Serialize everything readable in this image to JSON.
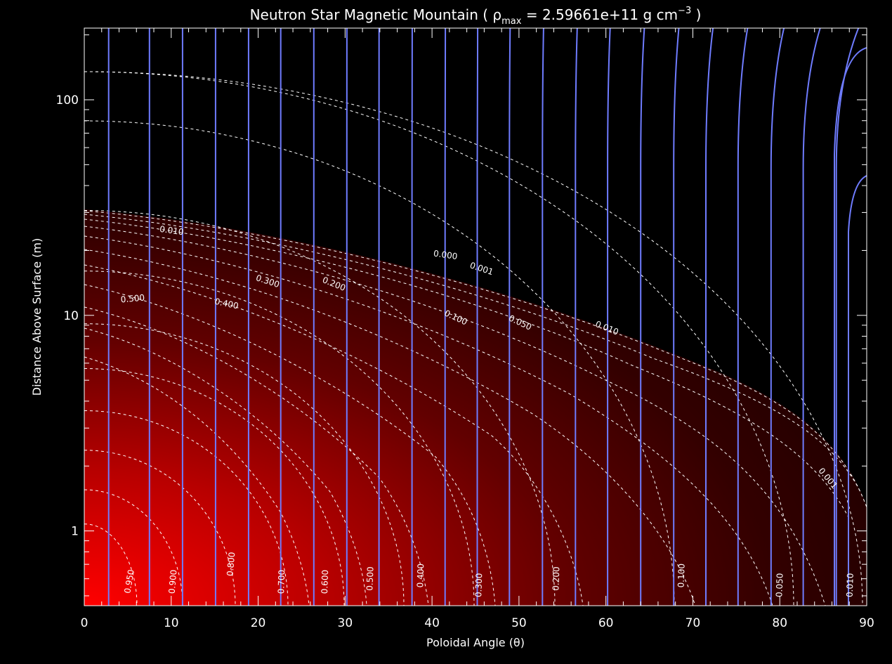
{
  "chart_data": {
    "type": "heatmap",
    "title": "Neutron Star Magnetic Mountain ( ρ",
    "title_sub": "max",
    "title_value": " =  2.59661e+11 g cm",
    "title_sup": "−3",
    "title_close": " )",
    "xlabel": "Poloidal Angle (θ)",
    "ylabel": "Distance Above Surface (m)",
    "xlim": [
      0,
      90
    ],
    "ylim": [
      0.45,
      215
    ],
    "yscale": "log",
    "x_ticks": [
      0,
      10,
      20,
      30,
      40,
      50,
      60,
      70,
      80,
      90
    ],
    "x_tick_labels": [
      "0",
      "10",
      "20",
      "30",
      "40",
      "50",
      "60",
      "70",
      "80",
      "90"
    ],
    "y_ticks": [
      1,
      10,
      100
    ],
    "y_tick_labels": [
      "1",
      "10",
      "100"
    ],
    "colors": {
      "background": "#000000",
      "fill_max": "#ff0000",
      "field_lines": "#6f7cff",
      "contours": "#ffffff"
    },
    "field_lines_x": [
      2.8,
      7.5,
      11.3,
      15.1,
      18.9,
      22.6,
      26.4,
      30.2,
      33.9,
      37.7,
      41.5,
      45.2,
      48.9,
      52.7,
      56.5,
      60.2,
      64.0,
      67.8,
      71.5,
      75.2,
      79.0,
      82.7,
      86.5
    ],
    "contour_labels": [
      {
        "text": "0.950",
        "x": 5.5,
        "y": 0.58,
        "rotate": -80
      },
      {
        "text": "0.900",
        "x": 10.5,
        "y": 0.58,
        "rotate": -85
      },
      {
        "text": "0.800",
        "x": 17.2,
        "y": 0.7,
        "rotate": -85
      },
      {
        "text": "0.700",
        "x": 23.0,
        "y": 0.58,
        "rotate": -88
      },
      {
        "text": "0.600",
        "x": 28.0,
        "y": 0.58,
        "rotate": -88
      },
      {
        "text": "0.500",
        "x": 33.2,
        "y": 0.6,
        "rotate": -88
      },
      {
        "text": "0.400",
        "x": 39.0,
        "y": 0.62,
        "rotate": -88
      },
      {
        "text": "0.300",
        "x": 45.7,
        "y": 0.56,
        "rotate": -88
      },
      {
        "text": "0.200",
        "x": 54.6,
        "y": 0.6,
        "rotate": -88
      },
      {
        "text": "0.100",
        "x": 69.0,
        "y": 0.62,
        "rotate": -88
      },
      {
        "text": "0.050",
        "x": 80.3,
        "y": 0.56,
        "rotate": -88
      },
      {
        "text": "0.010",
        "x": 88.4,
        "y": 0.56,
        "rotate": -88
      },
      {
        "text": "0.500",
        "x": 5.6,
        "y": 11.6,
        "rotate": -5
      },
      {
        "text": "0.400",
        "x": 16.3,
        "y": 11.0,
        "rotate": 12
      },
      {
        "text": "0.300",
        "x": 21.0,
        "y": 14.0,
        "rotate": 18
      },
      {
        "text": "0.200",
        "x": 28.6,
        "y": 13.6,
        "rotate": 22
      },
      {
        "text": "0.100",
        "x": 42.6,
        "y": 9.5,
        "rotate": 25
      },
      {
        "text": "0.050",
        "x": 50.0,
        "y": 9.0,
        "rotate": 25
      },
      {
        "text": "0.010",
        "x": 60.0,
        "y": 8.5,
        "rotate": 22
      },
      {
        "text": "0.010",
        "x": 10.0,
        "y": 24.0,
        "rotate": 8
      },
      {
        "text": "0.000",
        "x": 41.5,
        "y": 18.5,
        "rotate": 8
      },
      {
        "text": "0.001",
        "x": 45.6,
        "y": 16.0,
        "rotate": 18
      },
      {
        "text": "0.001",
        "x": 85.3,
        "y": 1.72,
        "rotate": 50
      }
    ]
  }
}
